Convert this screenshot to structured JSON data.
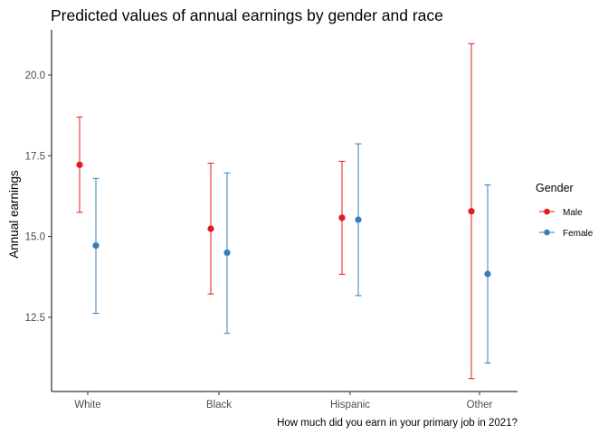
{
  "chart_data": {
    "type": "scatter",
    "title": "Predicted values of annual earnings by gender and race",
    "xlabel": "How much did you earn in your primary job in 2021?",
    "ylabel": "Annual earnings",
    "categories": [
      "White",
      "Black",
      "Hispanic",
      "Other"
    ],
    "ylim": [
      10.2,
      21.4
    ],
    "yticks": [
      12.5,
      15.0,
      17.5,
      20.0
    ],
    "ytick_labels": [
      "12.5",
      "15.0",
      "17.5",
      "20.0"
    ],
    "grid": false,
    "legend": {
      "title": "Gender",
      "position": "right"
    },
    "series": [
      {
        "name": "Male",
        "color": "#E41A1C",
        "values": [
          17.22,
          15.24,
          15.58,
          15.78
        ],
        "lower": [
          15.75,
          13.22,
          13.83,
          10.6
        ],
        "upper": [
          18.7,
          17.27,
          17.33,
          20.97
        ]
      },
      {
        "name": "Female",
        "color": "#377EB8",
        "values": [
          14.72,
          14.5,
          15.52,
          13.84
        ],
        "lower": [
          12.62,
          12.0,
          13.17,
          11.08
        ],
        "upper": [
          16.8,
          16.97,
          17.87,
          16.6
        ]
      }
    ]
  }
}
